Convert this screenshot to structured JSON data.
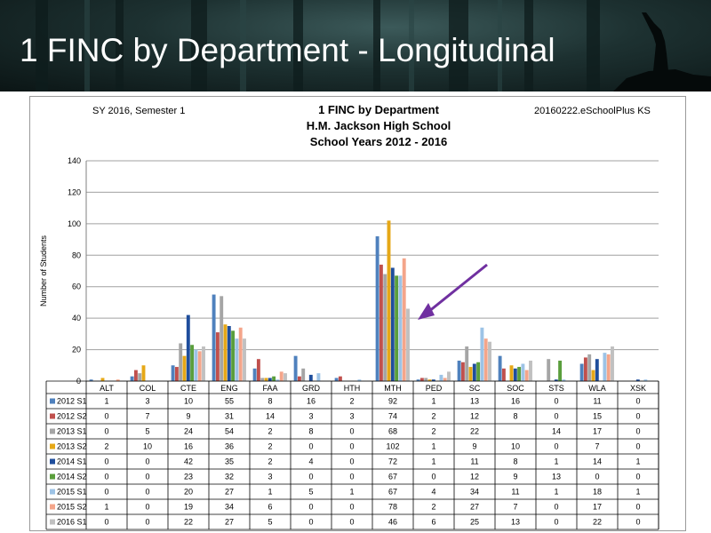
{
  "slide": {
    "title": "1 FINC by Department - Longitudinal"
  },
  "header": {
    "left": "SY 2016, Semester 1",
    "right": "20160222.eSchoolPlus KS",
    "title_lines": [
      "1 FINC by Department",
      "H.M. Jackson High School",
      "School Years 2012 - 2016"
    ]
  },
  "chart_data": {
    "type": "bar",
    "title": "1 FINC by Department",
    "subtitle": "H.M. Jackson High School; School Years 2012 - 2016",
    "ylabel": "Number of Students",
    "xlabel": "",
    "ylim": [
      0,
      140
    ],
    "yticks": [
      0,
      20,
      40,
      60,
      80,
      100,
      120,
      140
    ],
    "grid": true,
    "legend": "table-below",
    "categories": [
      "ALT",
      "COL",
      "CTE",
      "ENG",
      "FAA",
      "GRD",
      "HTH",
      "MTH",
      "PED",
      "SC",
      "SOC",
      "STS",
      "WLA",
      "XSK"
    ],
    "series": [
      {
        "name": "2012 S1",
        "color": "#4f81bd",
        "values": [
          1,
          3,
          10,
          55,
          8,
          16,
          2,
          92,
          1,
          13,
          16,
          0,
          11,
          0
        ]
      },
      {
        "name": "2012 S2",
        "color": "#c0504d",
        "values": [
          0,
          7,
          9,
          31,
          14,
          3,
          3,
          74,
          2,
          12,
          8,
          0,
          15,
          0
        ]
      },
      {
        "name": "2013 S1",
        "color": "#a5a5a5",
        "values": [
          0,
          5,
          24,
          54,
          2,
          8,
          0,
          68,
          2,
          22,
          null,
          14,
          17,
          0
        ]
      },
      {
        "name": "2013 S2",
        "color": "#e6a817",
        "values": [
          2,
          10,
          16,
          36,
          2,
          0,
          0,
          102,
          1,
          9,
          10,
          0,
          7,
          0
        ]
      },
      {
        "name": "2014 S1",
        "color": "#1f4e9c",
        "values": [
          0,
          0,
          42,
          35,
          2,
          4,
          0,
          72,
          1,
          11,
          8,
          1,
          14,
          1
        ]
      },
      {
        "name": "2014 S2",
        "color": "#5a9e3c",
        "values": [
          0,
          0,
          23,
          32,
          3,
          0,
          0,
          67,
          0,
          12,
          9,
          13,
          0,
          0
        ]
      },
      {
        "name": "2015 S1",
        "color": "#9dc3e6",
        "values": [
          0,
          0,
          20,
          27,
          1,
          5,
          1,
          67,
          4,
          34,
          11,
          1,
          18,
          1
        ]
      },
      {
        "name": "2015 S2",
        "color": "#f4a58a",
        "values": [
          1,
          0,
          19,
          34,
          6,
          0,
          0,
          78,
          2,
          27,
          7,
          0,
          17,
          0
        ]
      },
      {
        "name": "2016 S1",
        "color": "#c0c0c0",
        "values": [
          0,
          0,
          22,
          27,
          5,
          0,
          0,
          46,
          6,
          25,
          13,
          0,
          22,
          0
        ]
      }
    ]
  },
  "annotation": {
    "arrow_color": "#7030a0"
  },
  "banner": {
    "accent": "#1d3131"
  }
}
